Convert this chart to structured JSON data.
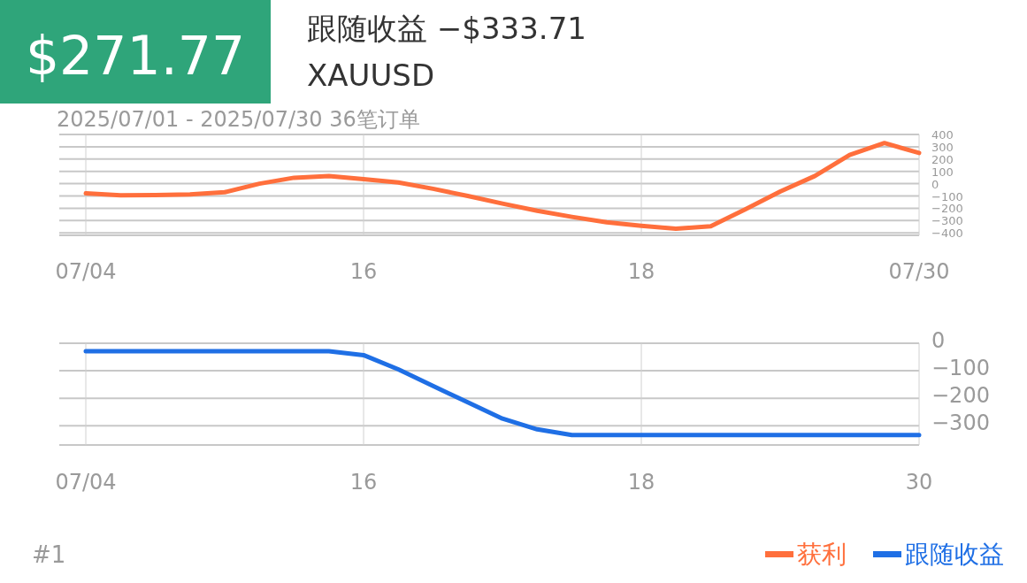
{
  "chart_data": [
    {
      "type": "line",
      "title": "跟随收益 −$333.71",
      "subtitle": "XAUUSD",
      "annotations": [
        "$271.77",
        "2025/07/01 - 2025/07/30  36笔订单"
      ],
      "categories": [
        "07/04",
        null,
        null,
        null,
        null,
        null,
        null,
        null,
        "16",
        null,
        null,
        null,
        null,
        null,
        null,
        null,
        "18",
        null,
        null,
        null,
        null,
        null,
        null,
        null,
        "07/30"
      ],
      "series": [
        {
          "name": "获利",
          "color": "#ff6f3c",
          "values": [
            -79,
            -94,
            -92,
            -88,
            -70,
            0,
            48,
            62,
            36,
            10,
            -42,
            -100,
            -162,
            -220,
            -270,
            -314,
            -342,
            -367,
            -346,
            -208,
            -64,
            63,
            234,
            330,
            250
          ]
        }
      ],
      "ylim": [
        -420,
        400
      ],
      "yticks": [
        -400,
        -300,
        -200,
        -100,
        0,
        100,
        200,
        300,
        400
      ],
      "grid": true,
      "legend": "bottom right"
    },
    {
      "type": "line",
      "annotations": [
        "#1"
      ],
      "categories": [
        "07/04",
        null,
        null,
        null,
        null,
        null,
        null,
        null,
        "16",
        null,
        null,
        null,
        null,
        null,
        null,
        null,
        "18",
        null,
        null,
        null,
        null,
        null,
        null,
        null,
        "30"
      ],
      "series": [
        {
          "name": "跟随收益",
          "color": "#1f6fe5",
          "values": [
            -29,
            -29,
            -29,
            -29,
            -29,
            -29,
            -29,
            -29,
            -43,
            -95,
            -155,
            -215,
            -274,
            -313,
            -334,
            -334,
            -334,
            -334,
            -334,
            -334,
            -334,
            -334,
            -334,
            -334,
            -334
          ]
        }
      ],
      "ylim": [
        -370,
        0
      ],
      "yticks": [
        -300,
        -200,
        -100,
        0
      ],
      "grid": true,
      "legend": "bottom right"
    }
  ]
}
